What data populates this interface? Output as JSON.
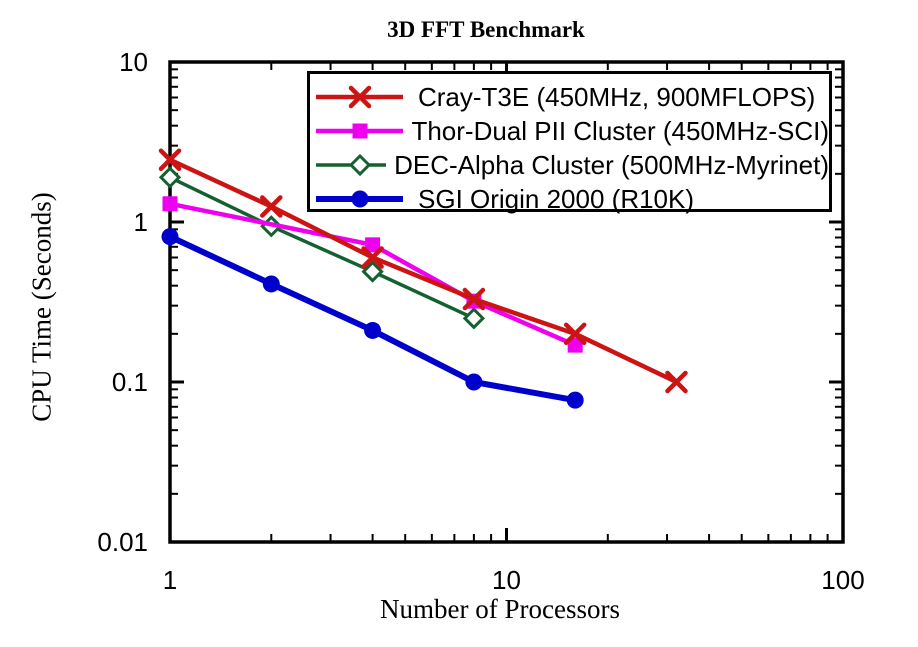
{
  "figure": {
    "background": "#ffffff",
    "text_color": "#000000"
  },
  "chart_data": {
    "type": "line",
    "title": "3D FFT Benchmark",
    "xlabel": "Number of Processors",
    "ylabel": "CPU Time (Seconds)",
    "x_scale": "log",
    "y_scale": "log",
    "xlim": [
      1,
      100
    ],
    "ylim": [
      0.01,
      10
    ],
    "x_major_ticks": [
      1,
      10,
      100
    ],
    "y_major_ticks": [
      10,
      1,
      0.1,
      0.01
    ],
    "grid": false,
    "legend_position": "inside-top",
    "series": [
      {
        "name": "Cray-T3E (450MHz, 900MFLOPS)",
        "color": "#cc1414",
        "marker": "x",
        "line_width": 4.5,
        "x": [
          1,
          2,
          4,
          8,
          16,
          32
        ],
        "y": [
          2.45,
          1.25,
          0.6,
          0.33,
          0.2,
          0.1
        ]
      },
      {
        "name": "Thor-Dual PII Cluster (450MHz-SCI)",
        "color": "#ee00ee",
        "marker": "filled-square",
        "line_width": 4.5,
        "x": [
          1,
          4,
          8,
          16
        ],
        "y": [
          1.3,
          0.72,
          0.32,
          0.17
        ]
      },
      {
        "name": "DEC-Alpha Cluster (500MHz-Myrinet)",
        "color": "#156031",
        "marker": "open-diamond",
        "line_width": 3.5,
        "x": [
          1,
          2,
          4,
          8
        ],
        "y": [
          1.9,
          0.94,
          0.49,
          0.25
        ]
      },
      {
        "name": "SGI Origin 2000 (R10K)",
        "color": "#0000cc",
        "marker": "filled-circle",
        "line_width": 6,
        "x": [
          1,
          2,
          4,
          8,
          16
        ],
        "y": [
          0.81,
          0.41,
          0.21,
          0.1,
          0.077
        ]
      }
    ]
  }
}
